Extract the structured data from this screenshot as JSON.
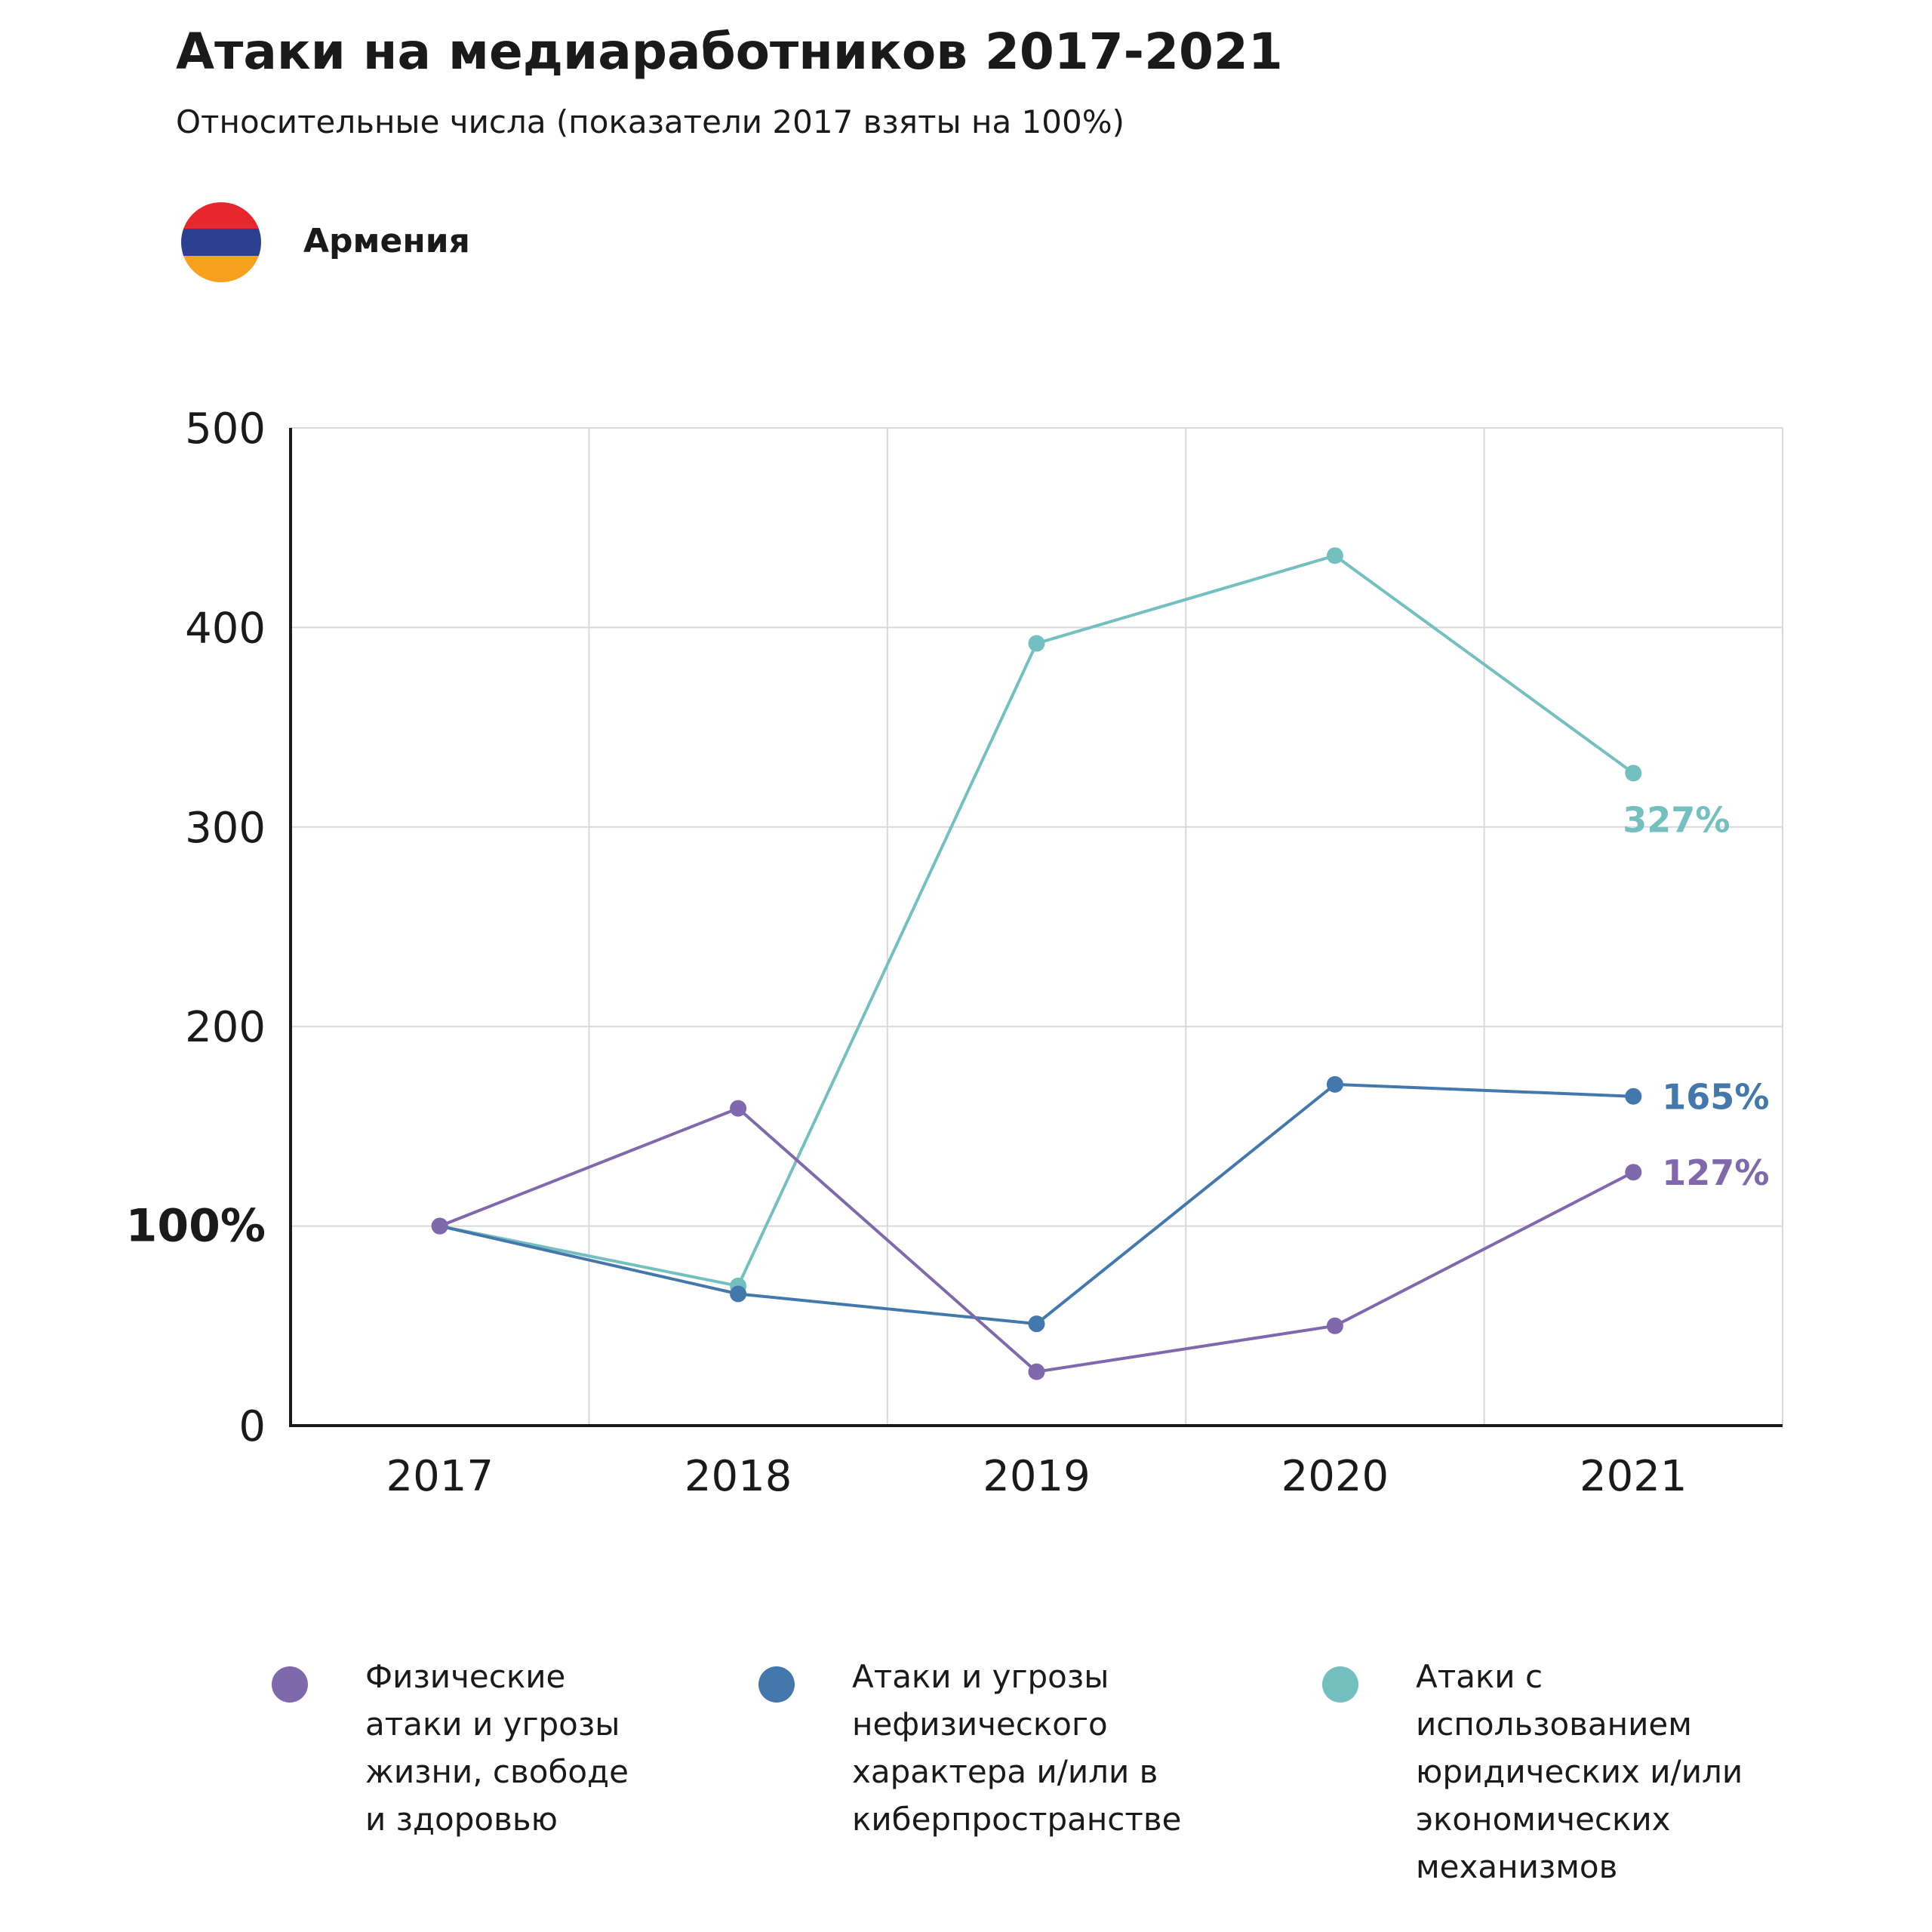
{
  "header": {
    "title": "Атаки на медиаработников 2017-2021",
    "subtitle": "Относительные числа (показатели 2017 взяты на 100%)",
    "country": "Армения",
    "flag_icon": "armenia-flag-icon",
    "flag_colors": [
      "#e8262e",
      "#2d3f8f",
      "#f7a11d"
    ]
  },
  "chart_data": {
    "type": "line",
    "title": "Атаки на медиаработников 2017-2021",
    "subtitle": "Относительные числа (показатели 2017 взяты на 100%)",
    "categories": [
      "2017",
      "2018",
      "2019",
      "2020",
      "2021"
    ],
    "ylim": [
      0,
      500
    ],
    "yticks": [
      0,
      100,
      200,
      300,
      400,
      500
    ],
    "ytick_labels": [
      "0",
      "100%",
      "200",
      "300",
      "400",
      "500"
    ],
    "grid": true,
    "legend_position": "bottom",
    "series": [
      {
        "name": "Физические атаки и угрозы жизни, свободе и здоровью",
        "color": "#8068ad",
        "values": [
          100,
          159,
          27,
          50,
          127
        ],
        "end_label": "127%"
      },
      {
        "name": "Атаки и угрозы нефизического характера и/или в киберпространстве",
        "color": "#4478ad",
        "values": [
          100,
          66,
          51,
          171,
          165
        ],
        "end_label": "165%"
      },
      {
        "name": "Атаки с использованием юридических и/или экономических механизмов",
        "color": "#74bfc0",
        "values": [
          100,
          70,
          392,
          436,
          327
        ],
        "end_label": "327%"
      }
    ]
  },
  "legend": {
    "items": [
      {
        "lines": [
          "Физические",
          "атаки и угрозы",
          "жизни, свободе",
          "и здоровью"
        ],
        "color": "#8068ad"
      },
      {
        "lines": [
          "Атаки и угрозы",
          "нефизического",
          "характера и/или в",
          "киберпространстве"
        ],
        "color": "#4478ad"
      },
      {
        "lines": [
          "Атаки с",
          "использованием",
          "юридических и/или",
          "экономических",
          "механизмов"
        ],
        "color": "#74bfc0"
      }
    ]
  }
}
